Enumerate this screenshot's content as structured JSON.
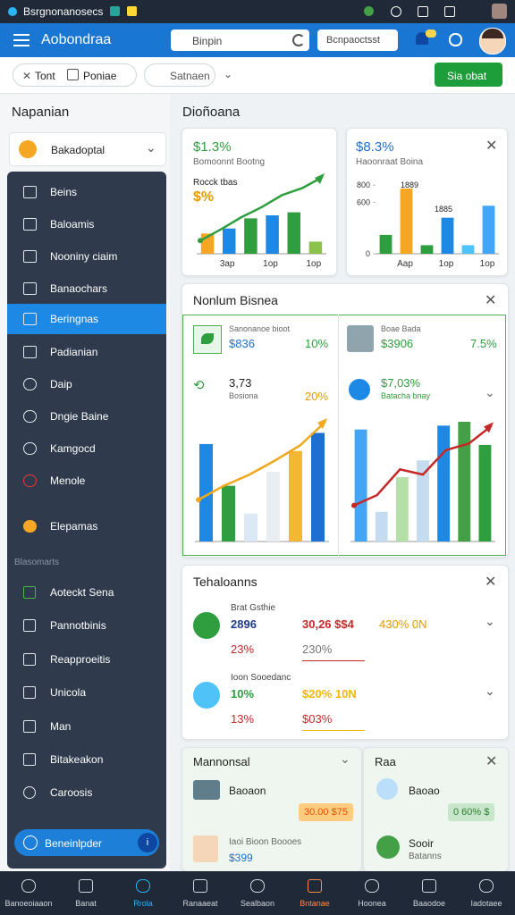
{
  "status_bar": {
    "title": "Bsrgnonanosecs"
  },
  "header": {
    "title": "Aobondraa",
    "search": "Binpin",
    "button": "Bcnpaoctsst"
  },
  "toolbar": {
    "chips": [
      "Tont",
      "Poniae"
    ],
    "search": "Satnaen",
    "action": "Sia obat"
  },
  "sidebar": {
    "title": "Napanian",
    "dropdown": "Bakadoptal",
    "items": [
      "Beins",
      "Baloamis",
      "Nooniny ciaim",
      "Banaochars",
      "Beringnas",
      "Padianian",
      "Daip",
      "Dngie Baine",
      "Kamgocd",
      "Menole",
      "Elepamas"
    ],
    "active": 4,
    "section": "Blasomarts",
    "section_items": [
      "Aoteckt Sena",
      "Pannotbinis",
      "Reapproeitis",
      "Unicola",
      "Man",
      "Bitakeakon",
      "Caroosis"
    ],
    "footer": "Beneinlpder"
  },
  "main": {
    "title": "Dioñoana",
    "card1": {
      "value": "$1.3%",
      "subtitle": "Bomoonnt Bootng",
      "label": "Rocck tbas",
      "badge": "$%",
      "chart": {
        "values": [
          2,
          2.5,
          3.5,
          3.8,
          4.1,
          1.2
        ],
        "colors": [
          "#f5a623",
          "#1e88e5",
          "#2e9e3f",
          "#1e88e5",
          "#2e9e3f",
          "#8bc34a"
        ],
        "line": [
          1.3,
          2.4,
          3.6,
          4.6,
          5.8,
          6.5,
          7.6
        ],
        "line_color": "#2e9e3f",
        "x_labels": [
          "3ap",
          "1op",
          "1op"
        ]
      }
    },
    "card2": {
      "value": "$8.3%",
      "subtitle": "Haoonraat Boina",
      "bar_labels": [
        "1889",
        "1885"
      ],
      "chart": {
        "values": [
          220,
          760,
          100,
          420,
          100,
          560
        ],
        "colors": [
          "#2e9e3f",
          "#f5a623",
          "#2e9e3f",
          "#1e88e5",
          "#4fc3f7",
          "#42a5f5"
        ],
        "ylim": [
          0,
          1000
        ],
        "yticks": [
          0,
          600,
          800
        ],
        "x_labels": [
          "Aap",
          "1op",
          "1op"
        ]
      }
    },
    "card3": {
      "title": "Nonlum Bisnea",
      "row1": {
        "label": "Sanonanoe bioot",
        "value": "$836",
        "change": "10%"
      },
      "row2": {
        "label": "Boae Bada",
        "value": "$3906",
        "change": "7.5%"
      },
      "left": {
        "value": "3,73",
        "label": "Bosiona",
        "change": "20%",
        "chart": {
          "values": [
            7,
            4,
            2,
            5,
            6.5,
            7.8
          ],
          "colors": [
            "#1e88e5",
            "#2e9e3f",
            "#dbe8f5",
            "#e8eef2",
            "#f5b731",
            "#1e6fd0"
          ],
          "line": [
            3,
            4,
            4.8,
            5.8,
            6.9,
            8.6
          ],
          "line_color": "#f0a81c"
        }
      },
      "right": {
        "value": "$7,03%",
        "label": "Batacha bnay",
        "chart": {
          "values": [
            8.7,
            2.3,
            5,
            6.3,
            9,
            9.3,
            7.5
          ],
          "colors": [
            "#42a5f5",
            "#c5dcf0",
            "#b5dfa6",
            "#c5dcf0",
            "#1e88e5",
            "#43a047",
            "#2e9e3f"
          ],
          "line": [
            2.8,
            3.6,
            5.6,
            5.2,
            7.1,
            7.6,
            9
          ],
          "line_color": "#c62828"
        }
      }
    },
    "card4": {
      "title": "Tehaloanns",
      "rows": [
        {
          "label": "Brat Gsthie",
          "value": "2896",
          "amount": "30,26 $$4",
          "rate": "430% 0N",
          "sub1": "23%",
          "sub2": "230%"
        },
        {
          "label": "Ioon Sooedanc",
          "value": "10%",
          "amount": "$20% 10N",
          "rate": "",
          "sub1": "13%",
          "sub2": "$03%"
        }
      ]
    },
    "card5": {
      "title": "Mannonsal",
      "item": "Baoaon",
      "badge": "30.00 $75",
      "person": "Iaoi Bioon Boooes",
      "price": "$399"
    },
    "card6": {
      "title": "Raa",
      "item": "Baoao",
      "badge": "0 60% $",
      "person": "Sooir",
      "person_sub": "Batanns"
    }
  },
  "bottom_nav": {
    "items": [
      "Banoeoiaaon",
      "Banat",
      "Rrola",
      "Ranaaeat",
      "Sealbaon",
      "Bntanae",
      "Hoonea",
      "Baaodoe",
      "Iadotaee"
    ],
    "active": 2
  }
}
